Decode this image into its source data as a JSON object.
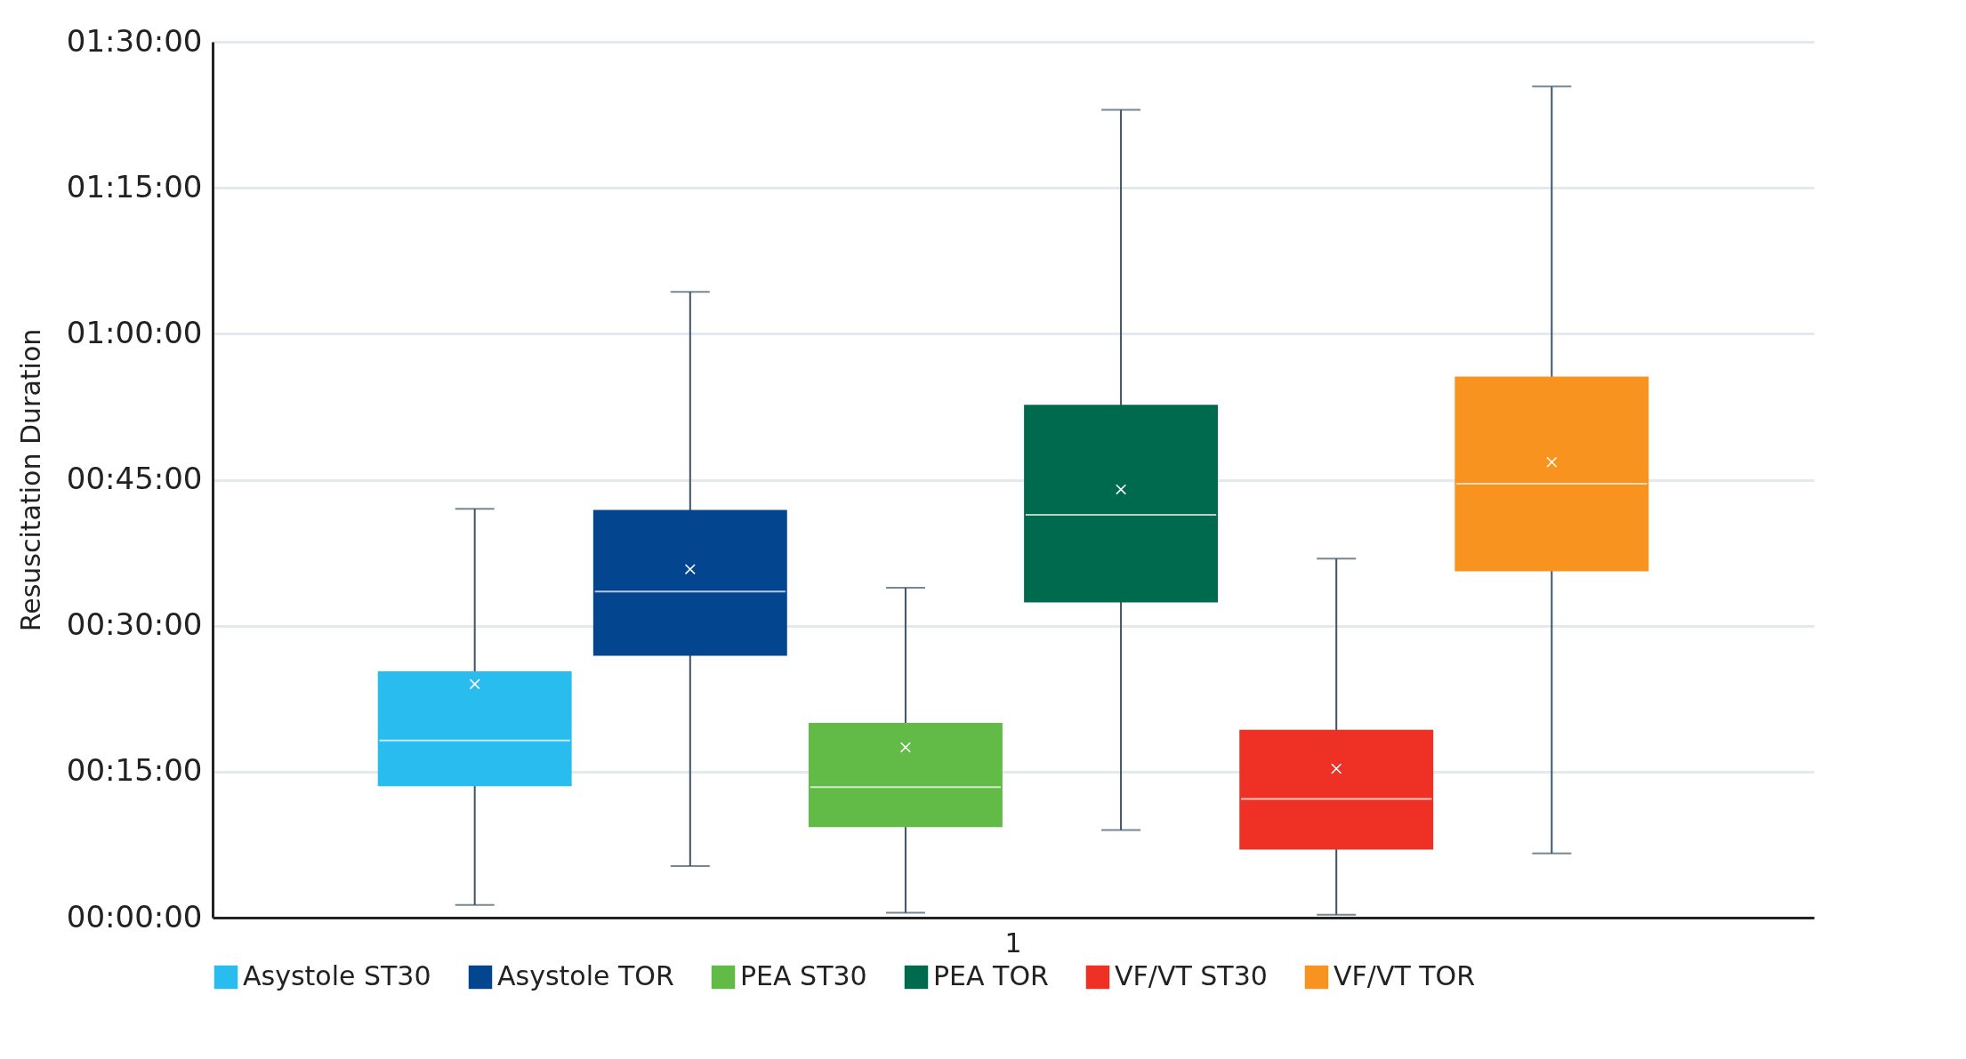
{
  "chart_data": {
    "type": "box",
    "ylabel": "Resuscitation Duration",
    "categories": [
      "1"
    ],
    "ylim": [
      0,
      90
    ],
    "yticks": [
      {
        "value": 0,
        "label": "00:00:00"
      },
      {
        "value": 15,
        "label": "00:15:00"
      },
      {
        "value": 30,
        "label": "00:30:00"
      },
      {
        "value": 45,
        "label": "00:45:00"
      },
      {
        "value": 60,
        "label": "01:00:00"
      },
      {
        "value": 75,
        "label": "01:15:00"
      },
      {
        "value": 90,
        "label": "01:30:00"
      }
    ],
    "grid": "y",
    "legend": "bottom",
    "series": [
      {
        "name": "Asystole ST30",
        "color": "#29bdef",
        "boxes": [
          {
            "low": 1.3,
            "q1": 13.5,
            "median": 18.2,
            "q3": 25.3,
            "high": 42.0,
            "mean": 24.0
          }
        ]
      },
      {
        "name": "Asystole TOR",
        "color": "#03468f",
        "boxes": [
          {
            "low": 5.3,
            "q1": 26.9,
            "median": 33.5,
            "q3": 41.9,
            "high": 64.3,
            "mean": 35.8
          }
        ]
      },
      {
        "name": "PEA ST30",
        "color": "#62bb46",
        "boxes": [
          {
            "low": 0.5,
            "q1": 9.3,
            "median": 13.4,
            "q3": 20.0,
            "high": 33.9,
            "mean": 17.5
          }
        ]
      },
      {
        "name": "PEA TOR",
        "color": "#006a4e",
        "boxes": [
          {
            "low": 9.0,
            "q1": 32.4,
            "median": 41.4,
            "q3": 52.7,
            "high": 83.0,
            "mean": 44.0
          }
        ]
      },
      {
        "name": "VF/VT ST30",
        "color": "#ee3124",
        "boxes": [
          {
            "low": 0.3,
            "q1": 7.0,
            "median": 12.2,
            "q3": 19.3,
            "high": 36.9,
            "mean": 15.3
          }
        ]
      },
      {
        "name": "VF/VT TOR",
        "color": "#f7931e",
        "boxes": [
          {
            "low": 6.6,
            "q1": 35.6,
            "median": 44.6,
            "q3": 55.6,
            "high": 85.4,
            "mean": 46.8
          }
        ]
      }
    ]
  }
}
